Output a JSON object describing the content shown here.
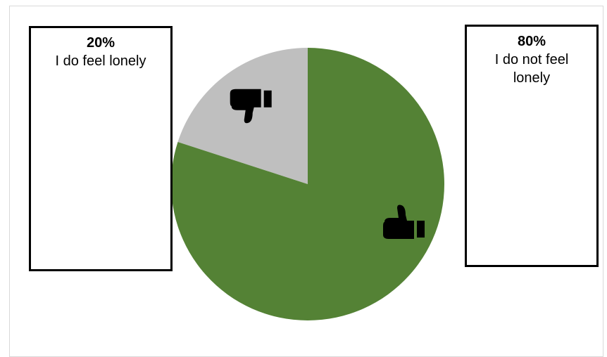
{
  "chart_data": {
    "type": "pie",
    "slices": [
      {
        "pct_label": "20%",
        "label": "I do feel lonely",
        "value": 20,
        "color": "#bfbfbf",
        "icon": "thumbs-down-icon"
      },
      {
        "pct_label": "80%",
        "label": "I do not feel lonely",
        "value": 80,
        "color": "#548235",
        "icon": "thumbs-up-icon"
      }
    ],
    "start": "12 o'clock, counter-clockwise"
  }
}
